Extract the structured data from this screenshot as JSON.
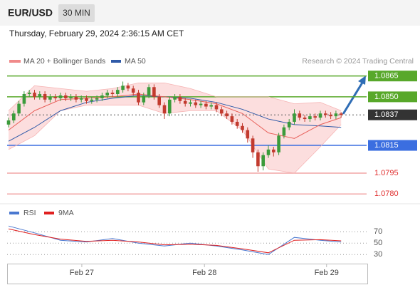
{
  "header": {
    "symbol": "EUR/USD",
    "timeframe": "30 MIN",
    "timestamp": "Thursday, February 29, 2024 2:36:15 AM CET"
  },
  "chart_data": {
    "type": "candlestick",
    "legend": {
      "ma20": "MA 20 + Bollinger Bands",
      "ma50": "MA 50",
      "credit": "Research © 2024 Trading Central"
    },
    "ylim": [
      1.0776,
      1.0871
    ],
    "xticks": [
      {
        "value": 14.1,
        "label": "Feb 27"
      },
      {
        "value": 37.7,
        "label": "Feb 28"
      },
      {
        "value": 61.2,
        "label": "Feb 29"
      }
    ],
    "colors": {
      "up": "#3b9b3b",
      "down": "#c23a2e",
      "ma20": "#e8605a",
      "band": "#fbd3d3",
      "ma50": "#2f5aa8"
    },
    "open": [
      1.083,
      1.0833,
      1.0838,
      1.0845,
      1.0852,
      1.0853,
      1.085,
      1.0852,
      1.0848,
      1.085,
      1.0849,
      1.0851,
      1.0849,
      1.085,
      1.0848,
      1.0849,
      1.0847,
      1.0848,
      1.0849,
      1.0851,
      1.0853,
      1.0852,
      1.0855,
      1.0858,
      1.0856,
      1.0853,
      1.0846,
      1.0851,
      1.0857,
      1.085,
      1.0844,
      1.0838,
      1.0848,
      1.085,
      1.0847,
      1.0845,
      1.0846,
      1.0844,
      1.0845,
      1.0843,
      1.0844,
      1.0841,
      1.0838,
      1.0836,
      1.0832,
      1.0829,
      1.0826,
      1.082,
      1.081,
      1.08,
      1.0808,
      1.0812,
      1.081,
      1.0822,
      1.0828,
      1.0832,
      1.0838,
      1.0835,
      1.0834,
      1.0836,
      1.0835,
      1.0838,
      1.0837,
      1.0836,
      1.0838
    ],
    "high": [
      1.0835,
      1.084,
      1.0847,
      1.0854,
      1.0855,
      1.0855,
      1.0854,
      1.0854,
      1.0852,
      1.0852,
      1.0853,
      1.0853,
      1.0852,
      1.0852,
      1.0851,
      1.0851,
      1.085,
      1.0851,
      1.0853,
      1.0855,
      1.0855,
      1.0857,
      1.0861,
      1.086,
      1.0858,
      1.0855,
      1.0853,
      1.0859,
      1.0859,
      1.0852,
      1.0846,
      1.085,
      1.0852,
      1.0852,
      1.0849,
      1.0848,
      1.0848,
      1.0847,
      1.0847,
      1.0846,
      1.0846,
      1.0843,
      1.084,
      1.0838,
      1.0834,
      1.0831,
      1.0828,
      1.0822,
      1.0812,
      1.081,
      1.0815,
      1.0814,
      1.0824,
      1.083,
      1.0834,
      1.0841,
      1.084,
      1.0837,
      1.0838,
      1.0838,
      1.084,
      1.084,
      1.0839,
      1.084,
      1.0839
    ],
    "low": [
      1.0828,
      1.0831,
      1.0836,
      1.0843,
      1.085,
      1.0848,
      1.0848,
      1.0846,
      1.0846,
      1.0847,
      1.0847,
      1.0847,
      1.0847,
      1.0846,
      1.0846,
      1.0845,
      1.0845,
      1.0846,
      1.0847,
      1.0849,
      1.085,
      1.085,
      1.0853,
      1.0854,
      1.0851,
      1.0844,
      1.0844,
      1.0849,
      1.0848,
      1.0842,
      1.0834,
      1.0836,
      1.0846,
      1.0845,
      1.0843,
      1.0843,
      1.0842,
      1.0842,
      1.0841,
      1.0841,
      1.0839,
      1.0836,
      1.0834,
      1.083,
      1.0827,
      1.0824,
      1.0817,
      1.0806,
      1.0796,
      1.0797,
      1.0806,
      1.0807,
      1.0808,
      1.082,
      1.0826,
      1.083,
      1.0833,
      1.0832,
      1.0832,
      1.0833,
      1.0833,
      1.0835,
      1.0834,
      1.0834,
      1.0835
    ],
    "close": [
      1.0833,
      1.0838,
      1.0845,
      1.0852,
      1.0853,
      1.085,
      1.0852,
      1.0848,
      1.085,
      1.0849,
      1.0851,
      1.0849,
      1.085,
      1.0848,
      1.0849,
      1.0847,
      1.0848,
      1.0849,
      1.0851,
      1.0853,
      1.0852,
      1.0855,
      1.0858,
      1.0856,
      1.0853,
      1.0846,
      1.0851,
      1.0857,
      1.085,
      1.0844,
      1.0838,
      1.0848,
      1.085,
      1.0847,
      1.0845,
      1.0846,
      1.0844,
      1.0845,
      1.0843,
      1.0844,
      1.0841,
      1.0838,
      1.0836,
      1.0832,
      1.0829,
      1.0826,
      1.082,
      1.081,
      1.08,
      1.0808,
      1.0812,
      1.081,
      1.0822,
      1.0828,
      1.0832,
      1.0838,
      1.0835,
      1.0834,
      1.0836,
      1.0835,
      1.0838,
      1.0837,
      1.0836,
      1.0838,
      1.0837
    ],
    "indicator_index": [
      0,
      5,
      10,
      15,
      20,
      25,
      30,
      35,
      40,
      45,
      50,
      55,
      60,
      64
    ],
    "ma20": [
      1.0826,
      1.084,
      1.0848,
      1.0849,
      1.085,
      1.0852,
      1.085,
      1.0848,
      1.0845,
      1.0838,
      1.0824,
      1.082,
      1.083,
      1.0835
    ],
    "bb_upper": [
      1.084,
      1.0858,
      1.0856,
      1.0854,
      1.0856,
      1.086,
      1.086,
      1.0856,
      1.085,
      1.085,
      1.085,
      1.0845,
      1.0846,
      1.084
    ],
    "bb_lower": [
      1.0812,
      1.0822,
      1.084,
      1.0844,
      1.0844,
      1.0844,
      1.0838,
      1.084,
      1.084,
      1.0826,
      1.0798,
      1.0795,
      1.0814,
      1.083
    ],
    "ma50": [
      1.0818,
      1.0828,
      1.084,
      1.0846,
      1.0849,
      1.0851,
      1.085,
      1.0849,
      1.0846,
      1.0841,
      1.0834,
      1.083,
      1.0829,
      1.0828
    ],
    "levels": {
      "values": [
        1.0865,
        1.085,
        1.0837,
        1.0815,
        1.0795,
        1.078
      ],
      "value_labels": [
        "1.0865",
        "1.0850",
        "1.0837",
        "1.0815",
        "1.0795",
        "1.0780"
      ],
      "colors": [
        "#58a82a",
        "#58a82a",
        "#333333",
        "#3b6ee0",
        "#e03030",
        "#e03030"
      ],
      "line_colors": [
        "#58a82a",
        "#58a82a",
        "#555555",
        "#3b6ee0",
        "#f2a6a6",
        "#f2a6a6"
      ],
      "boxed": [
        true,
        true,
        true,
        true,
        false,
        false
      ],
      "dotted": [
        false,
        false,
        true,
        false,
        false,
        false
      ]
    },
    "rsi": {
      "legend": {
        "rsi": "RSI",
        "ma": "9MA"
      },
      "colors": {
        "rsi": "#4a78d0",
        "ma": "#e02020"
      },
      "ylim": [
        14,
        89
      ],
      "yticks": [
        70,
        50,
        30
      ],
      "values": [
        80,
        68,
        55,
        52,
        58,
        50,
        45,
        50,
        45,
        38,
        30,
        60,
        55,
        52
      ],
      "ma": [
        75,
        65,
        57,
        53,
        55,
        52,
        47,
        48,
        46,
        40,
        33,
        55,
        56,
        54
      ]
    }
  }
}
